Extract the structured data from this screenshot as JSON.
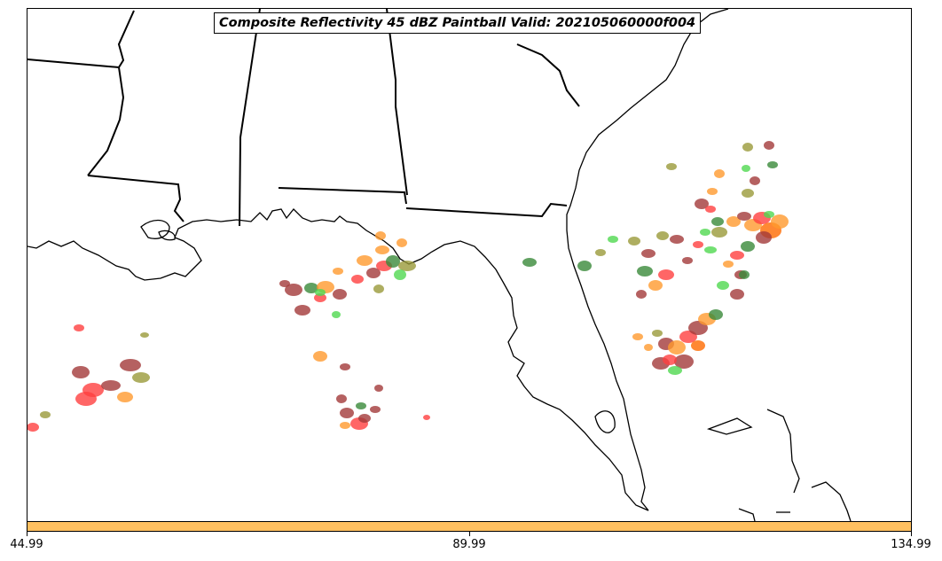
{
  "title": "Composite Reflectivity 45 dBZ Paintball Valid: 202105060000f004",
  "colorbar": {
    "color": "#ffc060",
    "ticks": [
      "44.99",
      "89.99",
      "134.99"
    ]
  },
  "colors": {
    "coastline": "#000000",
    "paintball_palette": [
      "#ff4040",
      "#a33a3a",
      "#ff9a2e",
      "#3a8a3a",
      "#50d850",
      "#9a9a3a",
      "#ff6a00"
    ]
  },
  "layers": [
    "state-borders",
    "coastline",
    "paintball-cells"
  ]
}
